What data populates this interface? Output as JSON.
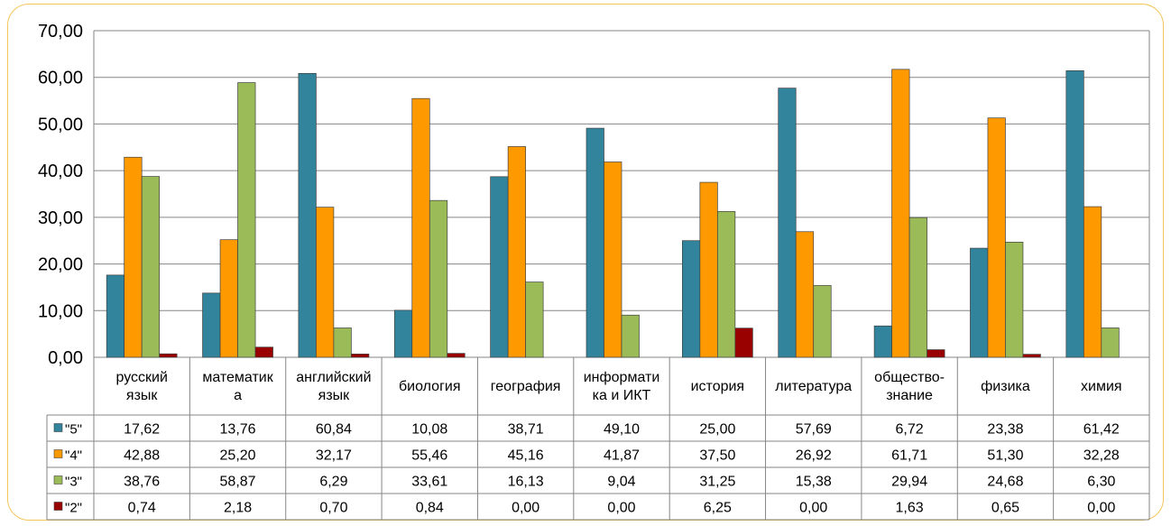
{
  "chart_data": {
    "type": "bar",
    "ylim": [
      0,
      70
    ],
    "ytick_step": 10,
    "ytick_labels": [
      "0,00",
      "10,00",
      "20,00",
      "30,00",
      "40,00",
      "50,00",
      "60,00",
      "70,00"
    ],
    "grid": true,
    "legend": "data-table",
    "categories": [
      [
        "русский",
        "язык"
      ],
      [
        "математик",
        "а"
      ],
      [
        "английский",
        "язык"
      ],
      [
        "биология"
      ],
      [
        "география"
      ],
      [
        "информати",
        "ка и ИКТ"
      ],
      [
        "история"
      ],
      [
        "литература"
      ],
      [
        "общество-",
        "знание"
      ],
      [
        "физика"
      ],
      [
        "химия"
      ]
    ],
    "series": [
      {
        "name": "\"5\"",
        "color": "#31849b",
        "values": [
          17.62,
          13.76,
          60.84,
          10.08,
          38.71,
          49.1,
          25.0,
          57.69,
          6.72,
          23.38,
          61.42
        ],
        "labels": [
          "17,62",
          "13,76",
          "60,84",
          "10,08",
          "38,71",
          "49,10",
          "25,00",
          "57,69",
          "6,72",
          "23,38",
          "61,42"
        ]
      },
      {
        "name": "\"4\"",
        "color": "#ff9900",
        "values": [
          42.88,
          25.2,
          32.17,
          55.46,
          45.16,
          41.87,
          37.5,
          26.92,
          61.71,
          51.3,
          32.28
        ],
        "labels": [
          "42,88",
          "25,20",
          "32,17",
          "55,46",
          "45,16",
          "41,87",
          "37,50",
          "26,92",
          "61,71",
          "51,30",
          "32,28"
        ]
      },
      {
        "name": "\"3\"",
        "color": "#9bbb59",
        "values": [
          38.76,
          58.87,
          6.29,
          33.61,
          16.13,
          9.04,
          31.25,
          15.38,
          29.94,
          24.68,
          6.3
        ],
        "labels": [
          "38,76",
          "58,87",
          "6,29",
          "33,61",
          "16,13",
          "9,04",
          "31,25",
          "15,38",
          "29,94",
          "24,68",
          "6,30"
        ]
      },
      {
        "name": "\"2\"",
        "color": "#990000",
        "values": [
          0.74,
          2.18,
          0.7,
          0.84,
          0.0,
          0.0,
          6.25,
          0.0,
          1.63,
          0.65,
          0.0
        ],
        "labels": [
          "0,74",
          "2,18",
          "0,70",
          "0,84",
          "0,00",
          "0,00",
          "6,25",
          "0,00",
          "1,63",
          "0,65",
          "0,00"
        ]
      }
    ]
  }
}
